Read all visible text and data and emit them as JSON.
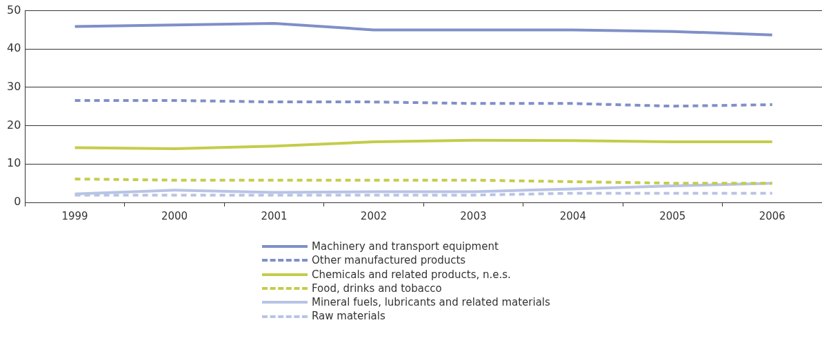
{
  "chart_data": {
    "type": "line",
    "categories": [
      "1999",
      "2000",
      "2001",
      "2002",
      "2003",
      "2004",
      "2005",
      "2006"
    ],
    "ylim": [
      0,
      50
    ],
    "yticks": [
      0,
      10,
      20,
      30,
      40,
      50
    ],
    "grid": "y",
    "legend": "bottom",
    "marker": "none",
    "series": [
      {
        "name": "Machinery and transport equipment",
        "color": "#7f8fc8",
        "line_style": "solid",
        "values": [
          45.9,
          46.3,
          46.7,
          45.0,
          45.0,
          45.0,
          44.6,
          43.7
        ]
      },
      {
        "name": "Other manufactured products",
        "color": "#7f8fc8",
        "line_style": "dashed",
        "values": [
          26.6,
          26.6,
          26.2,
          26.2,
          25.8,
          25.8,
          25.1,
          25.5
        ]
      },
      {
        "name": "Chemicals and related products, n.e.s.",
        "color": "#c4cc4a",
        "line_style": "solid",
        "values": [
          14.3,
          14.0,
          14.7,
          15.8,
          16.2,
          16.1,
          15.8,
          15.8
        ]
      },
      {
        "name": "Food, drinks and tobacco",
        "color": "#c4cc4a",
        "line_style": "dashed",
        "values": [
          6.1,
          5.8,
          5.8,
          5.8,
          5.8,
          5.4,
          5.0,
          5.0
        ]
      },
      {
        "name": "Mineral fuels, lubricants and related materials",
        "color": "#b8c4e4",
        "line_style": "solid",
        "values": [
          2.2,
          3.2,
          2.6,
          2.8,
          2.8,
          3.5,
          4.3,
          5.0
        ]
      },
      {
        "name": "Raw materials",
        "color": "#b8c4e4",
        "line_style": "dashed",
        "values": [
          1.9,
          1.9,
          1.9,
          1.9,
          1.9,
          2.4,
          2.4,
          2.4
        ]
      }
    ]
  }
}
